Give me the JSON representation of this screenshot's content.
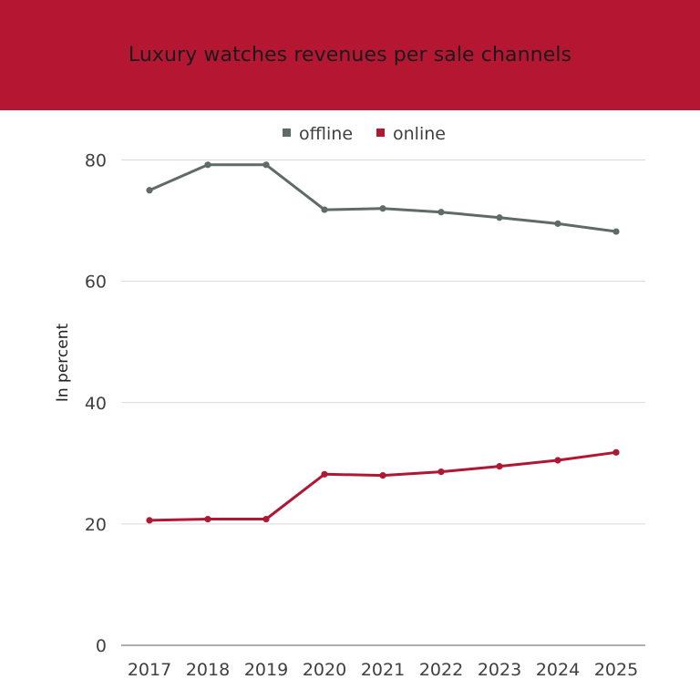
{
  "chart_data": {
    "type": "line",
    "title": "Luxury watches revenues per sale channels",
    "xlabel": "",
    "ylabel": "In percent",
    "categories": [
      "2017",
      "2018",
      "2019",
      "2020",
      "2021",
      "2022",
      "2023",
      "2024",
      "2025"
    ],
    "ylim": [
      0,
      80
    ],
    "yticks": [
      0,
      20,
      40,
      60,
      80
    ],
    "grid": true,
    "legend_position": "top",
    "series": [
      {
        "name": "offline",
        "color": "#5f6b67",
        "values": [
          75,
          79.2,
          79.2,
          71.8,
          72,
          71.4,
          70.5,
          69.5,
          68.2
        ]
      },
      {
        "name": "online",
        "color": "#b01733",
        "values": [
          20.6,
          20.8,
          20.8,
          28.2,
          28,
          28.6,
          29.5,
          30.5,
          31.8
        ]
      }
    ]
  },
  "theme": {
    "banner_color": "#b51733",
    "grid_color": "#d9d9d9",
    "axis_color": "#7f7f7f",
    "text_color": "#404040"
  }
}
